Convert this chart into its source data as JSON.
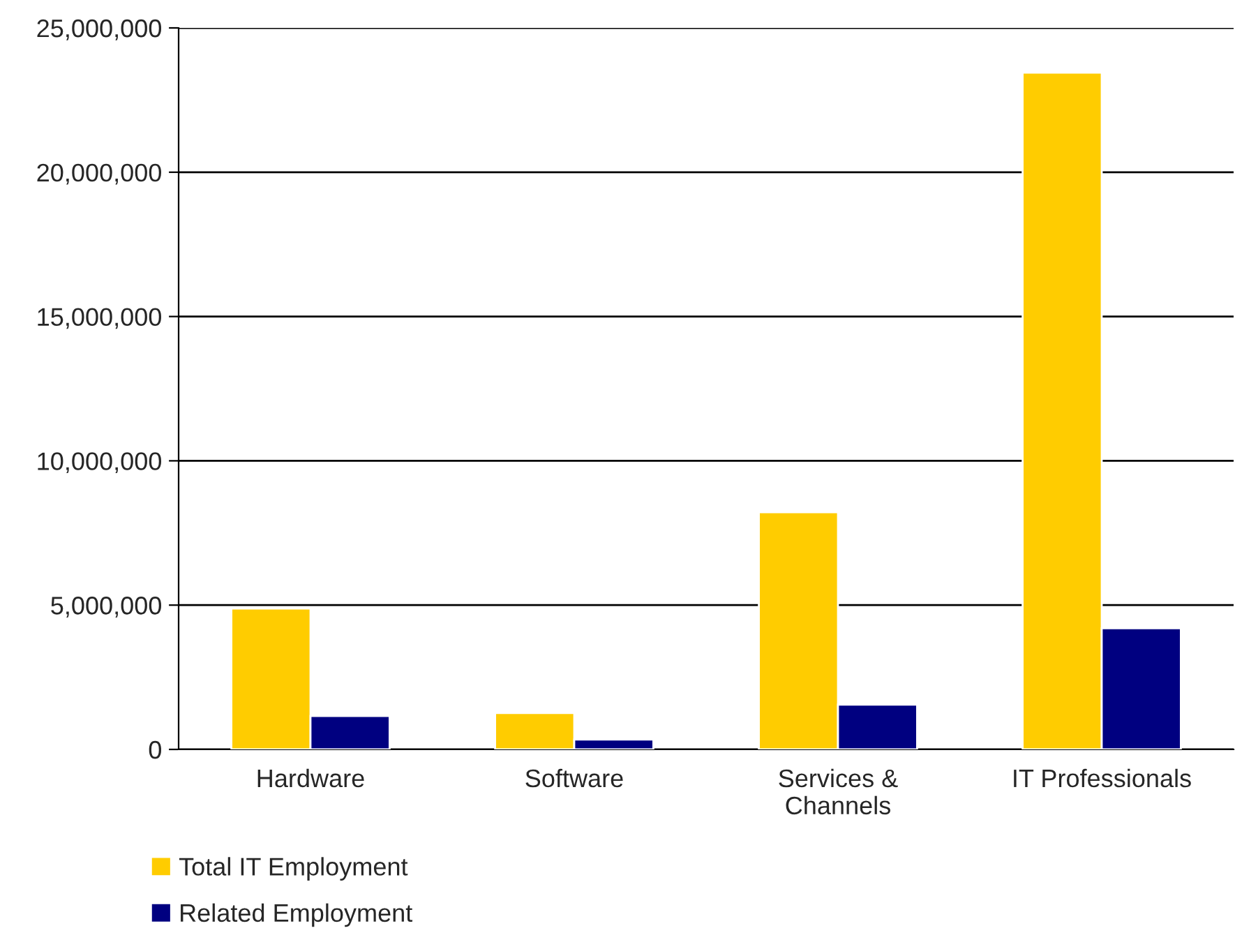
{
  "chart_data": {
    "type": "bar",
    "categories": [
      "Hardware",
      "Software",
      "Services &\nChannels",
      "IT Professionals"
    ],
    "series": [
      {
        "name": "Total IT Employment",
        "color": "#ffcc00",
        "values": [
          4880000,
          1260000,
          8220000,
          23450000
        ]
      },
      {
        "name": "Related Employment",
        "color": "#000080",
        "values": [
          1160000,
          340000,
          1550000,
          4200000
        ]
      }
    ],
    "ylim": [
      0,
      25000000
    ],
    "yticks": [
      {
        "value": 0,
        "label": "0"
      },
      {
        "value": 5000000,
        "label": "5,000,000"
      },
      {
        "value": 10000000,
        "label": "10,000,000"
      },
      {
        "value": 15000000,
        "label": "15,000,000"
      },
      {
        "value": 20000000,
        "label": "20,000,000"
      },
      {
        "value": 25000000,
        "label": "25,000,000"
      }
    ],
    "grid": "y",
    "legend": "bottom left"
  }
}
